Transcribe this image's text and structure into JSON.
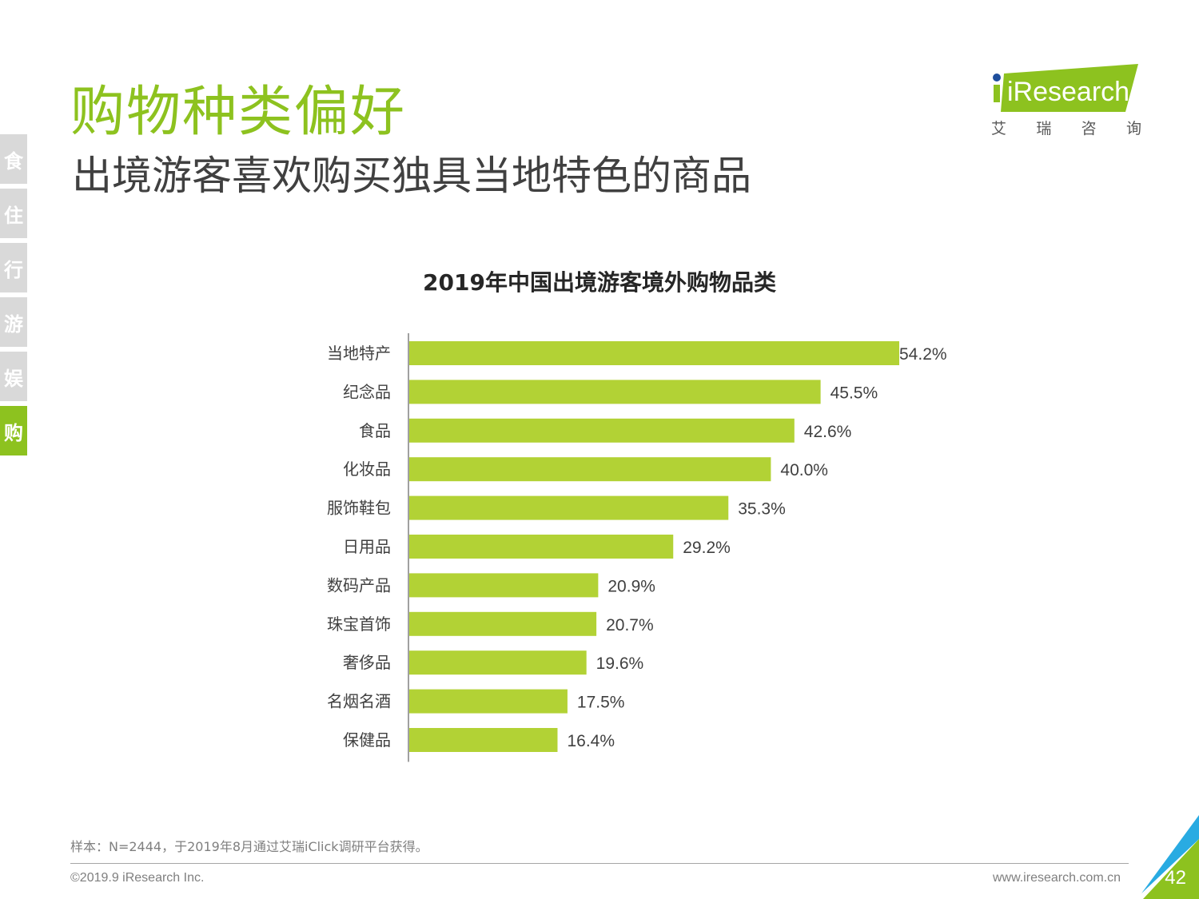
{
  "side_tabs": [
    {
      "label": "食",
      "active": false
    },
    {
      "label": "住",
      "active": false
    },
    {
      "label": "行",
      "active": false
    },
    {
      "label": "游",
      "active": false
    },
    {
      "label": "娱",
      "active": false
    },
    {
      "label": "购",
      "active": true
    }
  ],
  "header": {
    "title": "购物种类偏好",
    "subtitle": "出境游客喜欢购买独具当地特色的商品"
  },
  "logo": {
    "brand": "iResearch",
    "cn_chars": [
      "艾",
      "瑞",
      "咨",
      "询"
    ]
  },
  "colors": {
    "accent": "#8dc21f",
    "bar": "#b2d235",
    "tab_inactive": "#d9d9d9",
    "corner_blue": "#29abe2"
  },
  "chart_data": {
    "type": "bar",
    "orientation": "horizontal",
    "title": "2019年中国出境游客境外购物品类",
    "categories": [
      "当地特产",
      "纪念品",
      "食品",
      "化妆品",
      "服饰鞋包",
      "日用品",
      "数码产品",
      "珠宝首饰",
      "奢侈品",
      "名烟名酒",
      "保健品"
    ],
    "values": [
      54.2,
      45.5,
      42.6,
      40.0,
      35.3,
      29.2,
      20.9,
      20.7,
      19.6,
      17.5,
      16.4
    ],
    "value_labels": [
      "54.2%",
      "45.5%",
      "42.6%",
      "40.0%",
      "35.3%",
      "29.2%",
      "20.9%",
      "20.7%",
      "19.6%",
      "17.5%",
      "16.4%"
    ],
    "unit": "%",
    "xlim": [
      0,
      54.2
    ],
    "grid": false,
    "legend": "none"
  },
  "footer": {
    "note": "样本：N=2444，于2019年8月通过艾瑞iClick调研平台获得。",
    "copyright": "©2019.9 iResearch Inc.",
    "website": "www.iresearch.com.cn",
    "page_number": "42"
  }
}
